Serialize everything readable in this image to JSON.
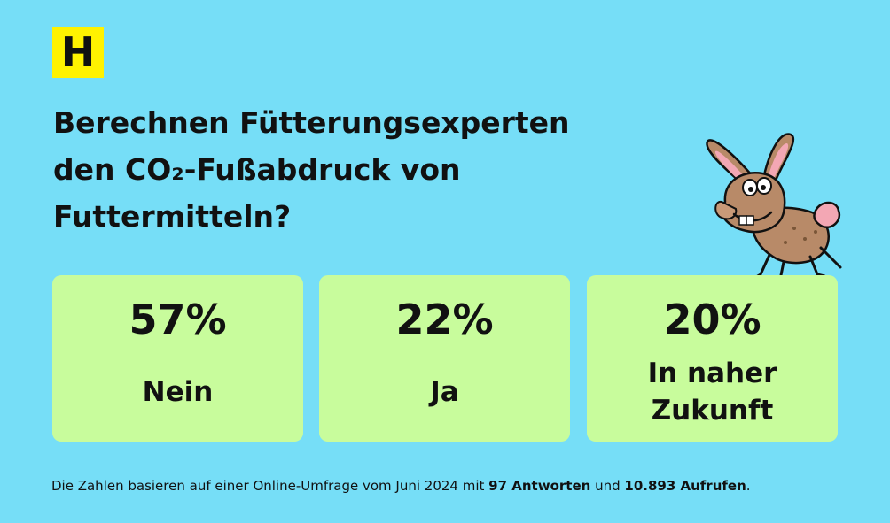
{
  "logo": {
    "letter": "H"
  },
  "question": {
    "lines": [
      "Berechnen Fütterungsexperten",
      "den CO₂-Fußabdruck von",
      "Futtermitteln?"
    ]
  },
  "results": [
    {
      "percent": "57%",
      "label": "Nein"
    },
    {
      "percent": "22%",
      "label": "Ja"
    },
    {
      "percent": "20%",
      "label": "In naher Zukunft"
    }
  ],
  "footnote": {
    "text_1": "Die Zahlen basieren auf einer Online-Umfrage vom Juni 2024 mit ",
    "answers": "97 Antworten",
    "text_2": " und ",
    "views": "10.893 Aufrufen",
    "text_3": "."
  },
  "colors": {
    "background": "#76def7",
    "card": "#c8fc9c",
    "logo": "#fff200",
    "text": "#111111"
  },
  "icons": {
    "mascot": "cartoon-rabbit-icon"
  }
}
